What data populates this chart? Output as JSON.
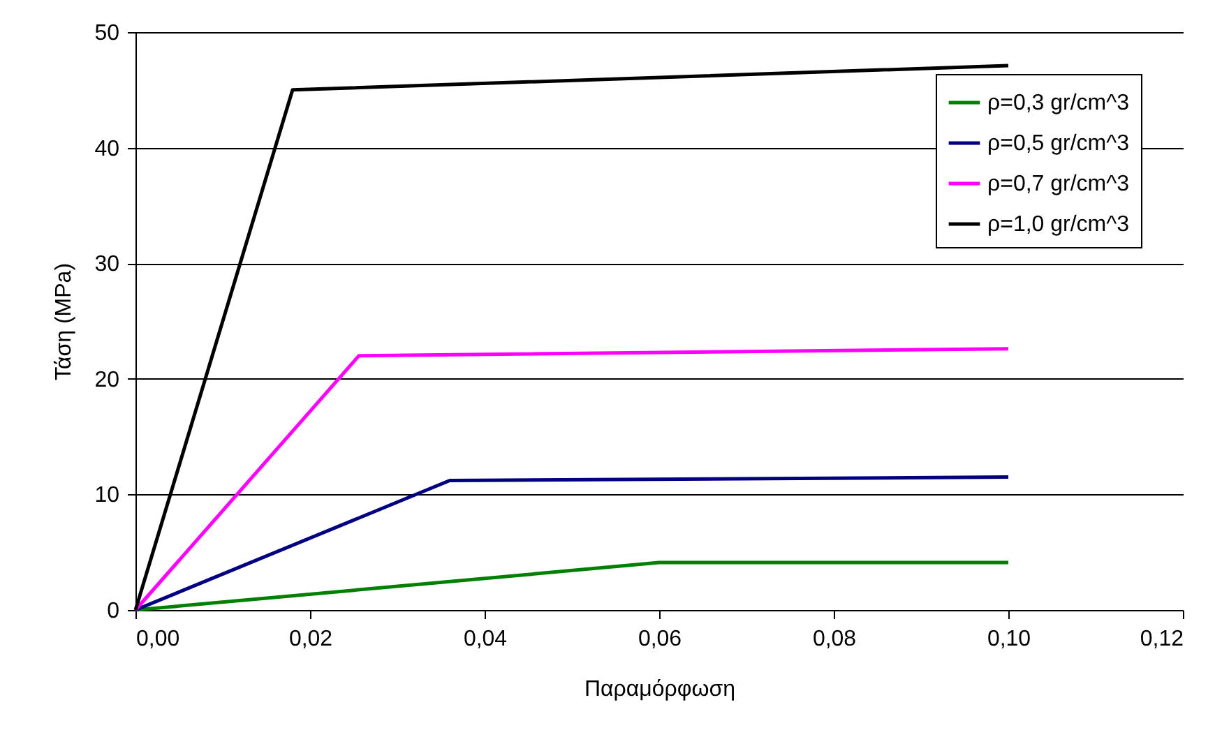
{
  "chart_data": {
    "type": "line",
    "xlabel": "Παραμόρφωση",
    "ylabel": "Τάση (MPa)",
    "xlim": [
      0,
      0.12
    ],
    "xticks": [
      {
        "value": 0,
        "label": "0,00"
      },
      {
        "value": 0.02,
        "label": "0,02"
      },
      {
        "value": 0.04,
        "label": "0,04"
      },
      {
        "value": 0.06,
        "label": "0,06"
      },
      {
        "value": 0.08,
        "label": "0,08"
      },
      {
        "value": 0.1,
        "label": "0,10"
      },
      {
        "value": 0.12,
        "label": "0,12"
      }
    ],
    "ylim": [
      0,
      50
    ],
    "yticks": [
      0,
      10,
      20,
      30,
      40,
      50
    ],
    "grid": "y",
    "legend": "top right",
    "marker": "none",
    "line_style": "solid",
    "series": [
      {
        "name": "ρ=0,3 gr/cm^3",
        "color": "#008000",
        "x": [
          0,
          0.06,
          0.1
        ],
        "values": [
          0,
          4.1,
          4.1
        ]
      },
      {
        "name": "ρ=0,5 gr/cm^3",
        "color": "#000080",
        "x": [
          0,
          0.036,
          0.1
        ],
        "values": [
          0,
          11.2,
          11.5
        ]
      },
      {
        "name": "ρ=0,7 gr/cm^3",
        "color": "#ff00ff",
        "x": [
          0,
          0.0256,
          0.1
        ],
        "values": [
          0,
          22,
          22.6
        ]
      },
      {
        "name": "ρ=1,0 gr/cm^3",
        "color": "#000000",
        "x": [
          0,
          0.018,
          0.1
        ],
        "values": [
          0,
          45,
          47.1
        ]
      }
    ]
  }
}
